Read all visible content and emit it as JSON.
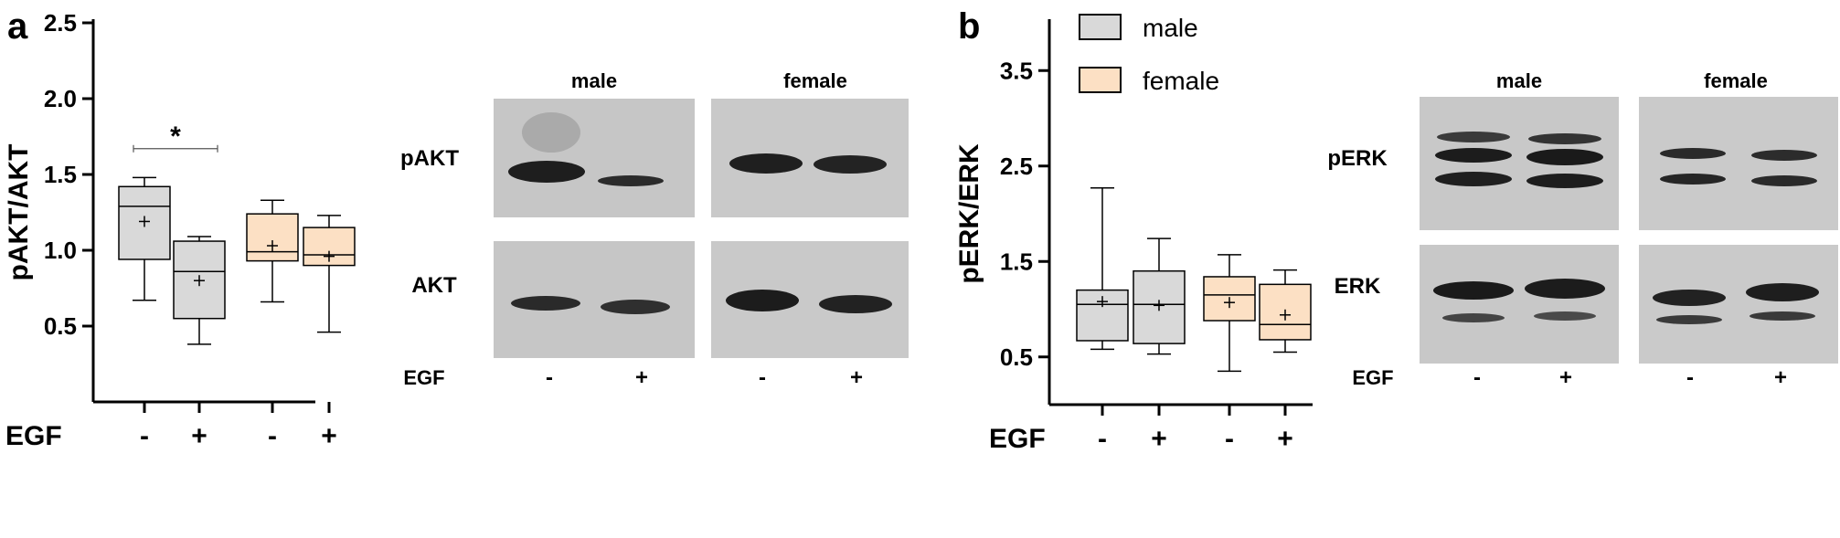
{
  "panel_a": {
    "letter": "a",
    "blot": {
      "group_labels": [
        "male",
        "female"
      ],
      "row_labels": [
        "pAKT",
        "AKT"
      ],
      "egf_label": "EGF",
      "lane_signs": [
        "-",
        "+",
        "-",
        "+"
      ]
    }
  },
  "panel_b": {
    "letter": "b",
    "legend": [
      "male",
      "female"
    ],
    "blot": {
      "group_labels": [
        "male",
        "female"
      ],
      "row_labels": [
        "pERK",
        "ERK"
      ],
      "egf_label": "EGF",
      "lane_signs": [
        "-",
        "+",
        "-",
        "+"
      ]
    }
  },
  "colors": {
    "male": "#d9d9d9",
    "female": "#fce0c4",
    "axis": "#000000"
  },
  "chart_data": [
    {
      "type": "box",
      "ylabel": "pAKT/AKT",
      "ylim": [
        0.0,
        2.5
      ],
      "yticks": [
        "0.5",
        "1.0",
        "1.5",
        "2.0",
        "2.5"
      ],
      "ytick_values": [
        0.5,
        1.0,
        1.5,
        2.0,
        2.5
      ],
      "x_title": "EGF",
      "categories": [
        "-",
        "+",
        "-",
        "+"
      ],
      "boxes": [
        {
          "group": "male",
          "egf": "-",
          "min": 0.67,
          "q1": 0.94,
          "median": 1.29,
          "q3": 1.42,
          "max": 1.48,
          "mean": 1.19
        },
        {
          "group": "male",
          "egf": "+",
          "min": 0.38,
          "q1": 0.55,
          "median": 0.86,
          "q3": 1.06,
          "max": 1.09,
          "mean": 0.8
        },
        {
          "group": "female",
          "egf": "-",
          "min": 0.66,
          "q1": 0.93,
          "median": 0.99,
          "q3": 1.24,
          "max": 1.33,
          "mean": 1.03
        },
        {
          "group": "female",
          "egf": "+",
          "min": 0.46,
          "q1": 0.9,
          "median": 0.97,
          "q3": 1.15,
          "max": 1.23,
          "mean": 0.96
        }
      ],
      "annotations": [
        {
          "text": "*",
          "between": [
            0,
            1
          ],
          "y": 1.67
        }
      ]
    },
    {
      "type": "box",
      "ylabel": "pERK/ERK",
      "ylim": [
        0.0,
        4.0
      ],
      "yticks": [
        "0.5",
        "1.5",
        "2.5",
        "3.5"
      ],
      "ytick_values": [
        0.5,
        1.5,
        2.5,
        3.5
      ],
      "x_title": "EGF",
      "categories": [
        "-",
        "+",
        "-",
        "+"
      ],
      "legend": [
        "male",
        "female"
      ],
      "boxes": [
        {
          "group": "male",
          "egf": "-",
          "min": 0.58,
          "q1": 0.67,
          "median": 1.05,
          "q3": 1.2,
          "max": 2.27,
          "mean": 1.08
        },
        {
          "group": "male",
          "egf": "+",
          "min": 0.53,
          "q1": 0.64,
          "median": 1.05,
          "q3": 1.4,
          "max": 1.74,
          "mean": 1.04
        },
        {
          "group": "female",
          "egf": "-",
          "min": 0.35,
          "q1": 0.88,
          "median": 1.15,
          "q3": 1.34,
          "max": 1.57,
          "mean": 1.07
        },
        {
          "group": "female",
          "egf": "+",
          "min": 0.55,
          "q1": 0.68,
          "median": 0.84,
          "q3": 1.26,
          "max": 1.41,
          "mean": 0.94
        }
      ]
    }
  ]
}
